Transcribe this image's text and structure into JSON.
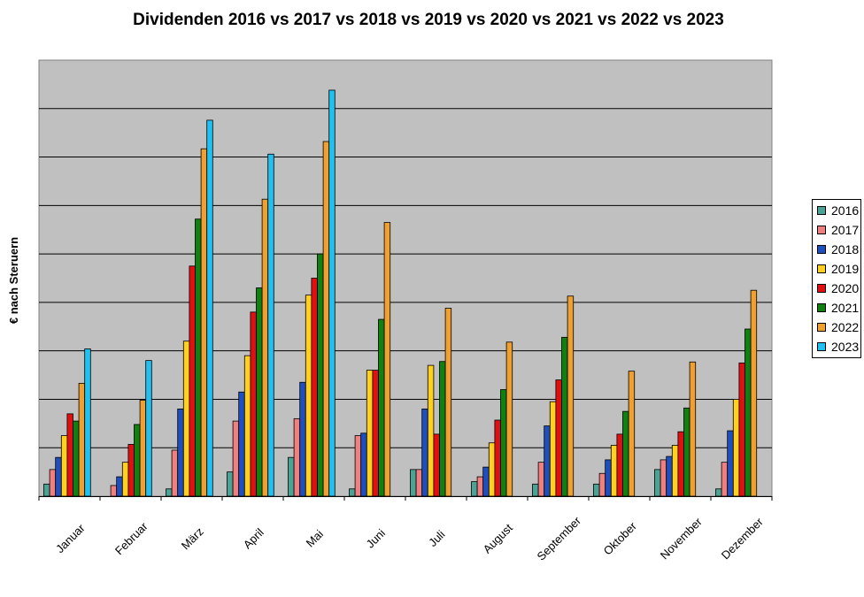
{
  "chart_data": {
    "type": "bar",
    "title": "Dividenden 2016 vs 2017 vs 2018 vs 2019 vs 2020 vs 2021 vs 2022 vs 2023",
    "xlabel": "",
    "ylabel": "€ nach Steruern",
    "ylim": [
      0,
      9
    ],
    "grid": true,
    "legend_position": "right",
    "plot_background": "#c0c0c0",
    "categories": [
      "Januar",
      "Februar",
      "März",
      "April",
      "Mai",
      "Juni",
      "Juli",
      "August",
      "September",
      "Oktober",
      "November",
      "Dezember"
    ],
    "series": [
      {
        "name": "2016",
        "color": "#4aa394",
        "values": [
          0.25,
          0,
          0.15,
          0.5,
          0.8,
          0.15,
          0.55,
          0.3,
          0.25,
          0.25,
          0.55,
          0.15
        ]
      },
      {
        "name": "2017",
        "color": "#f08080",
        "values": [
          0.55,
          0.22,
          0.95,
          1.55,
          1.6,
          1.25,
          0.55,
          0.4,
          0.7,
          0.47,
          0.75,
          0.7
        ]
      },
      {
        "name": "2018",
        "color": "#1f4fbf",
        "values": [
          0.8,
          0.4,
          1.8,
          2.15,
          2.35,
          1.3,
          1.8,
          0.6,
          1.45,
          0.75,
          0.82,
          1.35
        ]
      },
      {
        "name": "2019",
        "color": "#ffd020",
        "values": [
          1.25,
          0.7,
          3.2,
          2.9,
          4.15,
          2.6,
          2.7,
          1.1,
          1.95,
          1.05,
          1.05,
          2.0
        ]
      },
      {
        "name": "2020",
        "color": "#e01010",
        "values": [
          1.7,
          1.07,
          4.75,
          3.8,
          4.5,
          2.6,
          1.28,
          1.57,
          2.4,
          1.28,
          1.33,
          2.75
        ]
      },
      {
        "name": "2021",
        "color": "#108010",
        "values": [
          1.55,
          1.48,
          5.72,
          4.3,
          5.0,
          3.65,
          2.78,
          2.2,
          3.28,
          1.75,
          1.82,
          3.45
        ]
      },
      {
        "name": "2022",
        "color": "#f0a030",
        "values": [
          2.33,
          1.98,
          7.17,
          6.13,
          7.32,
          5.65,
          3.88,
          3.18,
          4.13,
          2.58,
          2.77,
          4.25
        ]
      },
      {
        "name": "2023",
        "color": "#20c0f0",
        "values": [
          3.04,
          2.8,
          7.76,
          7.06,
          8.38,
          null,
          null,
          null,
          null,
          null,
          null,
          null
        ]
      }
    ]
  }
}
